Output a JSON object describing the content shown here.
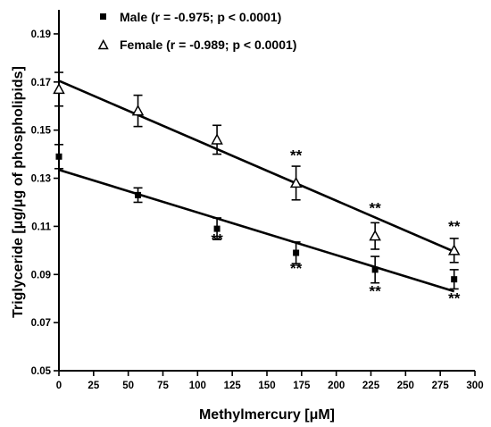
{
  "chart_data": {
    "type": "scatter",
    "title": "",
    "xlabel": "Methylmercury [μM]",
    "ylabel": "Triglyceride [μg/μg of phospholipids]",
    "xlim": [
      0,
      300
    ],
    "ylim": [
      0.05,
      0.2
    ],
    "xticks": [
      0,
      25,
      50,
      75,
      100,
      125,
      150,
      175,
      200,
      225,
      250,
      275,
      300
    ],
    "yticks": [
      "0.05",
      "0.07",
      "0.09",
      "0.11",
      "0.13",
      "0.15",
      "0.17",
      "0.19"
    ],
    "grid": false,
    "legend_position": "top-left",
    "series": [
      {
        "name": "Male (r = -0.975; p < 0.0001)",
        "marker": "filled-square",
        "color": "#000000",
        "points": [
          {
            "x": 0,
            "y": 0.139,
            "err": 0.005
          },
          {
            "x": 57,
            "y": 0.123,
            "err": 0.003
          },
          {
            "x": 114,
            "y": 0.109,
            "err": 0.0045
          },
          {
            "x": 171,
            "y": 0.099,
            "err": 0.0045
          },
          {
            "x": 228,
            "y": 0.092,
            "err": 0.0055
          },
          {
            "x": 285,
            "y": 0.088,
            "err": 0.004
          }
        ],
        "fit": {
          "x": [
            0,
            285
          ],
          "y": [
            0.1335,
            0.083
          ]
        }
      },
      {
        "name": "Female (r = -0.989; p < 0.0001)",
        "marker": "open-triangle",
        "color": "#000000",
        "points": [
          {
            "x": 0,
            "y": 0.167,
            "err": 0.007
          },
          {
            "x": 57,
            "y": 0.158,
            "err": 0.0065
          },
          {
            "x": 114,
            "y": 0.146,
            "err": 0.006
          },
          {
            "x": 171,
            "y": 0.128,
            "err": 0.007
          },
          {
            "x": 228,
            "y": 0.106,
            "err": 0.0055
          },
          {
            "x": 285,
            "y": 0.1,
            "err": 0.005
          }
        ],
        "fit": {
          "x": [
            0,
            285
          ],
          "y": [
            0.1705,
            0.0995
          ]
        }
      }
    ],
    "annotations": [
      {
        "text": "**",
        "x": 114,
        "y": 0.1025
      },
      {
        "text": "**",
        "x": 171,
        "y": 0.1375
      },
      {
        "text": "**",
        "x": 171,
        "y": 0.0905
      },
      {
        "text": "**",
        "x": 228,
        "y": 0.1155
      },
      {
        "text": "**",
        "x": 228,
        "y": 0.081
      },
      {
        "text": "**",
        "x": 285,
        "y": 0.108
      },
      {
        "text": "**",
        "x": 285,
        "y": 0.078
      }
    ]
  }
}
